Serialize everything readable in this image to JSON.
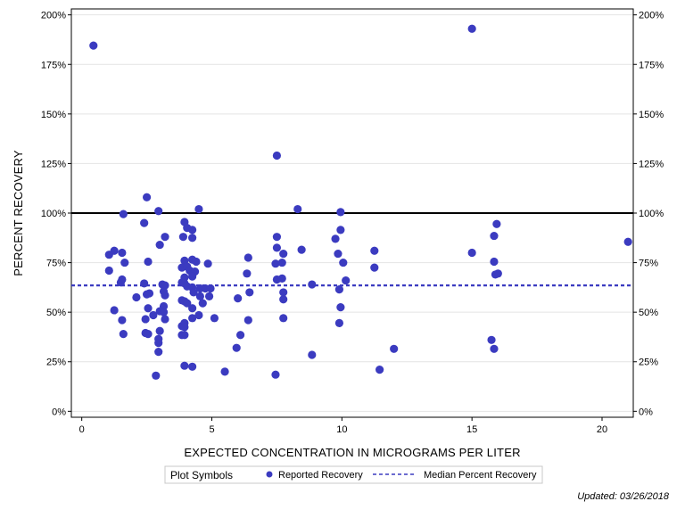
{
  "chart_data": {
    "type": "scatter",
    "xlabel": "EXPECTED CONCENTRATION IN MICROGRAMS PER LITER",
    "ylabel": "PERCENT RECOVERY",
    "xlim": [
      -0.4,
      21.2
    ],
    "ylim": [
      -3,
      203
    ],
    "xticks": [
      0,
      5,
      10,
      15,
      20
    ],
    "yticks": [
      0,
      25,
      50,
      75,
      100,
      125,
      150,
      175,
      200
    ],
    "ytick_labels": [
      "0%",
      "25%",
      "50%",
      "75%",
      "100%",
      "125%",
      "150%",
      "175%",
      "200%"
    ],
    "reference_line": {
      "name": "100 percent",
      "y": 100,
      "color": "#000000"
    },
    "median_line": {
      "name": "Median Percent Recovery",
      "y": 63.5,
      "color": "#3b3bc0"
    },
    "series": [
      {
        "name": "Reported Recovery",
        "color": "#3b3bc0",
        "points": [
          [
            0.45,
            184.5
          ],
          [
            15.0,
            193.0
          ],
          [
            7.5,
            129.0
          ],
          [
            2.5,
            108.0
          ],
          [
            8.3,
            102.0
          ],
          [
            4.5,
            102.0
          ],
          [
            2.95,
            101.0
          ],
          [
            1.6,
            99.5
          ],
          [
            9.95,
            100.5
          ],
          [
            3.95,
            95.5
          ],
          [
            2.4,
            95.0
          ],
          [
            15.95,
            94.5
          ],
          [
            4.25,
            91.5
          ],
          [
            4.05,
            92.5
          ],
          [
            9.95,
            91.5
          ],
          [
            3.9,
            88.0
          ],
          [
            4.25,
            87.5
          ],
          [
            3.2,
            88.0
          ],
          [
            7.5,
            88.0
          ],
          [
            9.75,
            87.0
          ],
          [
            15.85,
            88.5
          ],
          [
            3.0,
            84.0
          ],
          [
            21.0,
            85.5
          ],
          [
            7.5,
            82.5
          ],
          [
            8.45,
            81.5
          ],
          [
            11.25,
            81.0
          ],
          [
            1.25,
            81.0
          ],
          [
            1.05,
            79.0
          ],
          [
            1.55,
            80.0
          ],
          [
            7.75,
            79.5
          ],
          [
            9.85,
            79.5
          ],
          [
            15.0,
            80.0
          ],
          [
            6.4,
            77.5
          ],
          [
            4.25,
            76.5
          ],
          [
            3.95,
            76.0
          ],
          [
            2.55,
            75.5
          ],
          [
            1.65,
            75.0
          ],
          [
            4.4,
            75.5
          ],
          [
            4.85,
            74.5
          ],
          [
            7.45,
            74.5
          ],
          [
            7.7,
            75.0
          ],
          [
            10.05,
            75.0
          ],
          [
            15.85,
            75.5
          ],
          [
            3.85,
            72.5
          ],
          [
            4.05,
            73.0
          ],
          [
            11.25,
            72.5
          ],
          [
            1.05,
            71.0
          ],
          [
            4.15,
            71.0
          ],
          [
            4.35,
            70.5
          ],
          [
            6.35,
            69.5
          ],
          [
            16.0,
            69.5
          ],
          [
            15.9,
            69.0
          ],
          [
            3.95,
            67.5
          ],
          [
            4.25,
            68.0
          ],
          [
            7.5,
            66.5
          ],
          [
            7.7,
            67.0
          ],
          [
            10.15,
            66.0
          ],
          [
            1.55,
            66.5
          ],
          [
            1.5,
            65.0
          ],
          [
            2.4,
            64.5
          ],
          [
            3.85,
            65.0
          ],
          [
            3.95,
            64.5
          ],
          [
            3.1,
            64.0
          ],
          [
            3.2,
            63.5
          ],
          [
            4.05,
            63.0
          ],
          [
            4.25,
            62.5
          ],
          [
            4.55,
            62.0
          ],
          [
            4.75,
            62.0
          ],
          [
            4.95,
            62.0
          ],
          [
            8.85,
            64.0
          ],
          [
            9.9,
            61.5
          ],
          [
            3.15,
            60.5
          ],
          [
            4.3,
            60.0
          ],
          [
            6.45,
            60.0
          ],
          [
            7.75,
            60.0
          ],
          [
            2.5,
            59.0
          ],
          [
            2.6,
            59.5
          ],
          [
            3.2,
            58.5
          ],
          [
            4.55,
            58.0
          ],
          [
            4.9,
            58.0
          ],
          [
            2.1,
            57.5
          ],
          [
            3.85,
            56.0
          ],
          [
            3.95,
            55.5
          ],
          [
            4.05,
            54.5
          ],
          [
            4.65,
            54.5
          ],
          [
            6.0,
            57.0
          ],
          [
            7.75,
            56.5
          ],
          [
            3.15,
            53.0
          ],
          [
            4.25,
            52.0
          ],
          [
            2.55,
            52.0
          ],
          [
            9.95,
            52.5
          ],
          [
            1.25,
            51.0
          ],
          [
            3.0,
            50.5
          ],
          [
            3.15,
            50.0
          ],
          [
            2.75,
            48.5
          ],
          [
            4.5,
            48.5
          ],
          [
            5.1,
            47.0
          ],
          [
            7.75,
            47.0
          ],
          [
            1.55,
            46.0
          ],
          [
            2.45,
            46.5
          ],
          [
            3.2,
            46.5
          ],
          [
            4.25,
            47.0
          ],
          [
            6.4,
            46.0
          ],
          [
            3.95,
            44.5
          ],
          [
            3.85,
            43.0
          ],
          [
            9.9,
            44.5
          ],
          [
            3.95,
            42.5
          ],
          [
            2.45,
            39.5
          ],
          [
            2.55,
            39.0
          ],
          [
            1.6,
            39.0
          ],
          [
            3.0,
            40.5
          ],
          [
            3.95,
            38.5
          ],
          [
            3.85,
            38.5
          ],
          [
            6.1,
            38.5
          ],
          [
            2.95,
            36.5
          ],
          [
            2.95,
            34.5
          ],
          [
            15.75,
            36.0
          ],
          [
            5.95,
            32.0
          ],
          [
            12.0,
            31.5
          ],
          [
            15.85,
            31.5
          ],
          [
            2.95,
            30.0
          ],
          [
            8.85,
            28.5
          ],
          [
            3.95,
            23.0
          ],
          [
            4.25,
            22.5
          ],
          [
            5.5,
            20.0
          ],
          [
            11.45,
            21.0
          ],
          [
            7.45,
            18.5
          ],
          [
            2.85,
            18.0
          ]
        ]
      }
    ]
  },
  "legend": {
    "title": "Plot Symbols",
    "items": [
      {
        "label": "Reported Recovery",
        "kind": "marker"
      },
      {
        "label": "Median Percent Recovery",
        "kind": "dashed-line"
      }
    ]
  },
  "footer": {
    "updated": "Updated: 03/26/2018"
  }
}
